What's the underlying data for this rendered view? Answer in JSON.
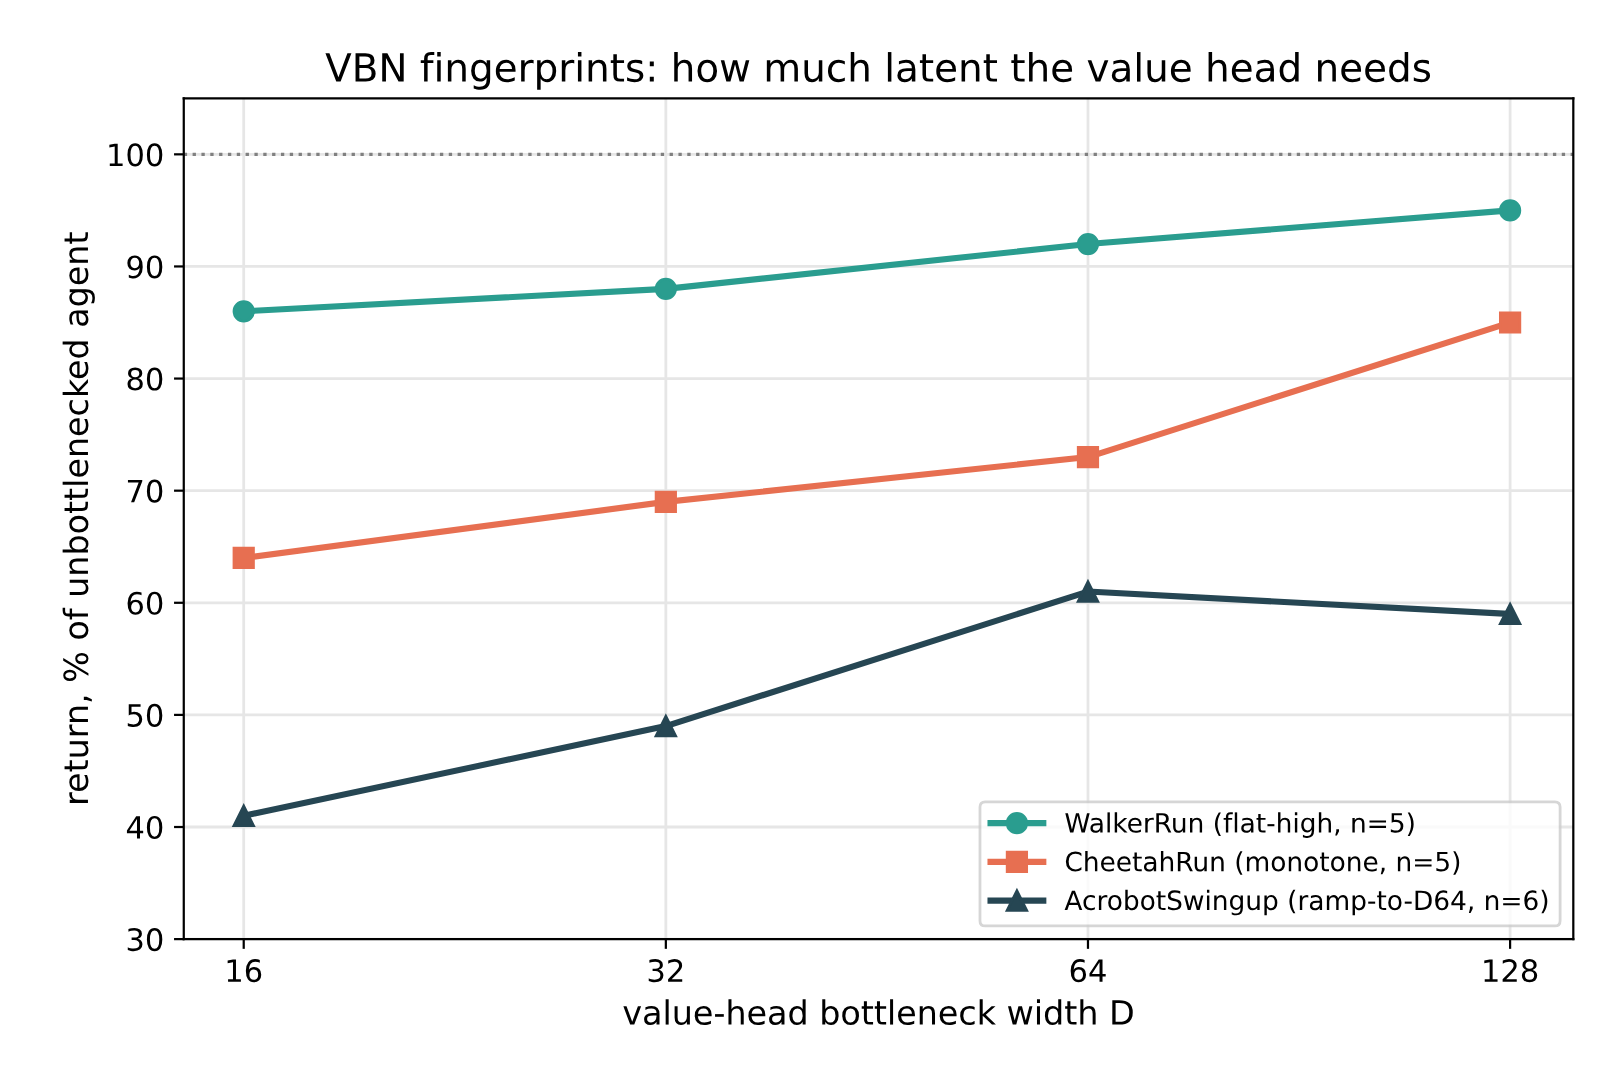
{
  "chart_data": {
    "type": "line",
    "title": "VBN fingerprints: how much latent the value head needs",
    "xlabel": "value-head bottleneck width D",
    "ylabel": "return, % of unbottlenecked agent",
    "x": [
      16,
      32,
      64,
      128
    ],
    "log": "x",
    "xlim": [
      14.5,
      142
    ],
    "xticks": [
      16,
      32,
      64,
      128
    ],
    "ylim": [
      30,
      105
    ],
    "yticks": [
      30,
      40,
      50,
      60,
      70,
      80,
      90,
      100
    ],
    "series": [
      {
        "name": "WalkerRun (flat-high, n=5)",
        "color": "#2a9d8f",
        "marker": "circle",
        "values": [
          86,
          88,
          92,
          95
        ]
      },
      {
        "name": "CheetahRun (monotone, n=5)",
        "color": "#e76f51",
        "marker": "square",
        "values": [
          64,
          69,
          73,
          85
        ]
      },
      {
        "name": "AcrobotSwingup (ramp-to-D64, n=6)",
        "color": "#264653",
        "marker": "triangle",
        "values": [
          41,
          49,
          61,
          59
        ]
      }
    ],
    "ref_lines": [
      {
        "axis": "y",
        "value": 100,
        "color": "#808080",
        "line_style": "dotted"
      }
    ],
    "grid": true,
    "legend": "bottom right",
    "line_style": "solid"
  }
}
